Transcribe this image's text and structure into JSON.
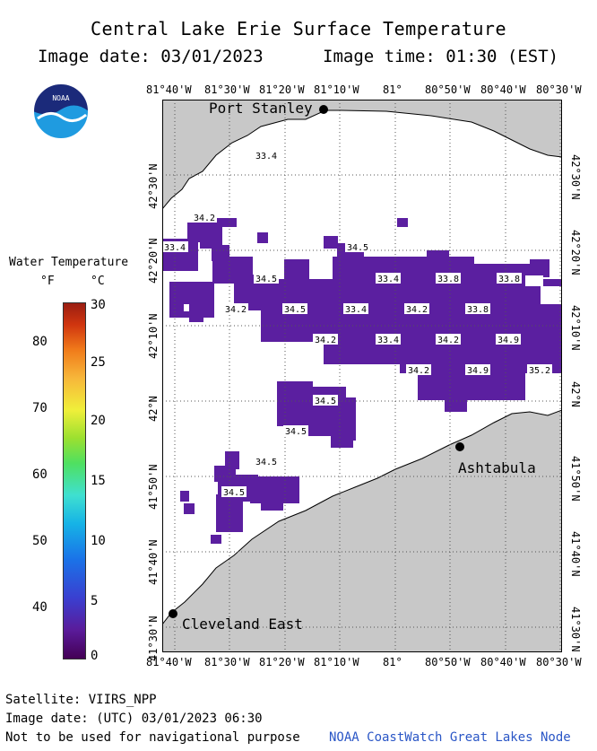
{
  "header": {
    "title": "Central Lake Erie Surface Temperature",
    "date": "Image date: 03/01/2023",
    "time": "Image time: 01:30 (EST)"
  },
  "logo": {
    "text": "NOAA",
    "icon": "noaa-logo-icon"
  },
  "axes": {
    "longitude_labels": [
      "81°40'W",
      "81°30'W",
      "81°20'W",
      "81°10'W",
      "81°",
      "80°50'W",
      "80°40'W",
      "80°30'W"
    ],
    "latitude_labels": [
      "42°30'N",
      "42°20'N",
      "42°10'N",
      "42°N",
      "41°50'N",
      "41°40'N",
      "41°30'N"
    ]
  },
  "legend": {
    "title": "Water Temperature",
    "unit_f": "°F",
    "unit_c": "°C",
    "f_ticks": [
      "80",
      "70",
      "60",
      "50",
      "40"
    ],
    "c_ticks": [
      "30",
      "25",
      "20",
      "15",
      "10",
      "5",
      "0"
    ]
  },
  "places": {
    "port_stanley": "Port Stanley",
    "ashtabula": "Ashtabula",
    "cleveland": "Cleveland East"
  },
  "temperatures": [
    "33.4",
    "34.2",
    "33.4",
    "34.5",
    "34.5",
    "33.4",
    "33.8",
    "33.8",
    "34.2",
    "34.5",
    "33.4",
    "34.2",
    "33.8",
    "34.2",
    "33.4",
    "34.2",
    "34.9",
    "34.2",
    "34.9",
    "35.2",
    "34.5",
    "34.5",
    "34.5",
    "34.5"
  ],
  "footer": {
    "satellite": "Satellite: VIIRS_NPP",
    "utc": "Image date: (UTC) 03/01/2023  06:30",
    "disclaimer": "Not to be used for navigational purpose",
    "credit": "NOAA CoastWatch Great Lakes Node"
  },
  "colors": {
    "land": "#c8c8c8",
    "water_cold": "#5b1fa0",
    "accent_blue": "#2a56c6"
  }
}
